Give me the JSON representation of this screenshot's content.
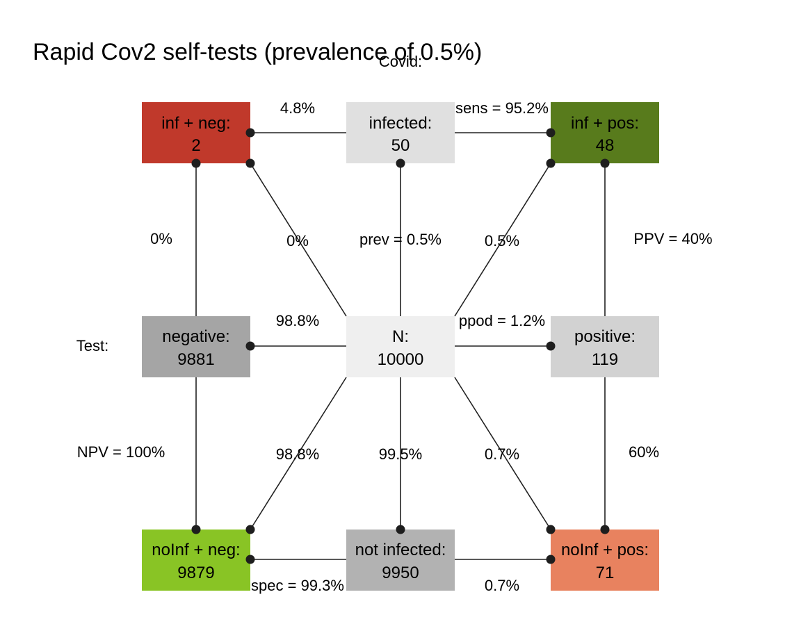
{
  "title": "Rapid Cov2 self-tests (prevalence of 0.5%)",
  "dimension_labels": {
    "covid": "Covid:",
    "test": "Test:"
  },
  "boxes": {
    "inf_neg": {
      "label": "inf + neg:",
      "value": "2",
      "color": "#c0392b"
    },
    "infected": {
      "label": "infected:",
      "value": "50",
      "color": "#e0e0e0"
    },
    "inf_pos": {
      "label": "inf + pos:",
      "value": "48",
      "color": "#587b1c"
    },
    "negative": {
      "label": "negative:",
      "value": "9881",
      "color": "#a5a5a5"
    },
    "n_total": {
      "label": "N:",
      "value": "10000",
      "color": "#efefef"
    },
    "positive": {
      "label": "positive:",
      "value": "119",
      "color": "#d2d2d2"
    },
    "noinf_neg": {
      "label": "noInf + neg:",
      "value": "9879",
      "color": "#89c425"
    },
    "not_infected": {
      "label": "not infected:",
      "value": "9950",
      "color": "#b2b2b2"
    },
    "noinf_pos": {
      "label": "noInf + pos:",
      "value": "71",
      "color": "#e8825f"
    }
  },
  "edge_labels": {
    "top_left": "4.8%",
    "sens": "sens = 95.2%",
    "left_upper": "0%",
    "diag_ul": "0%",
    "prev": "prev = 0.5%",
    "diag_ur": "0.5%",
    "ppv": "PPV = 40%",
    "mid_left": "98.8%",
    "ppod": "ppod = 1.2%",
    "npv": "NPV = 100%",
    "diag_ll": "98.8%",
    "center_down": "99.5%",
    "diag_lr": "0.7%",
    "right_lower": "60%",
    "spec": "spec = 99.3%",
    "bottom_right": "0.7%"
  }
}
